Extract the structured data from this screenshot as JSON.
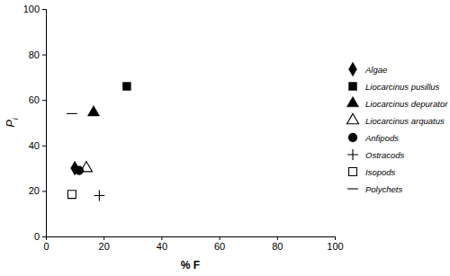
{
  "chart_data": {
    "type": "scatter",
    "x_label": "% F",
    "y_label": "Pi",
    "xlim": [
      0,
      100
    ],
    "xticks": [
      0,
      20,
      40,
      60,
      80,
      100
    ],
    "ylim": [
      0,
      100
    ],
    "yticks": [
      0,
      20,
      40,
      60,
      80,
      100
    ],
    "grid": false,
    "legend": "right",
    "series": [
      {
        "name": "Algae",
        "color": "#000000",
        "marker": "diamond",
        "x": [
          10
        ],
        "values": [
          30
        ]
      },
      {
        "name": "Liocarcinus pusillus",
        "color": "#000000",
        "marker": "square",
        "x": [
          28
        ],
        "values": [
          66
        ]
      },
      {
        "name": "Liocarcinus depurator",
        "color": "#000000",
        "marker": "triangle",
        "x": [
          16.5
        ],
        "values": [
          54.5
        ]
      },
      {
        "name": "Liocarcinus arquatus",
        "color": "#000000",
        "marker": "triangle-open",
        "x": [
          14
        ],
        "values": [
          30
        ]
      },
      {
        "name": "Anfipods",
        "color": "#000000",
        "marker": "circle",
        "x": [
          11.5
        ],
        "values": [
          29
        ]
      },
      {
        "name": "Ostracods",
        "color": "#000000",
        "marker": "plus",
        "x": [
          18.5
        ],
        "values": [
          18
        ]
      },
      {
        "name": "Isopods",
        "color": "#000000",
        "marker": "square-open",
        "x": [
          9
        ],
        "values": [
          18.5
        ]
      },
      {
        "name": "Polychets",
        "color": "#000000",
        "marker": "dash",
        "x": [
          9
        ],
        "values": [
          54
        ]
      }
    ]
  }
}
